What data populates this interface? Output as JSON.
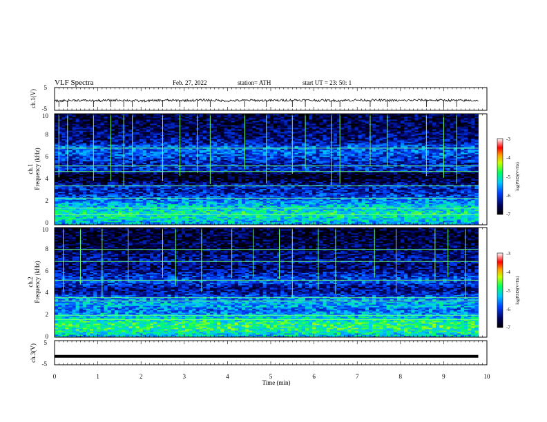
{
  "header": {
    "title": "VLF Spectra",
    "date": "Feb. 27, 2022",
    "station": "station= ATH",
    "start": "start UT =  23: 50: 1"
  },
  "colors": {
    "background": "#ffffff",
    "axis": "#000000",
    "spectrogram_low": "#00005a",
    "spectrogram_high": "#ff0000",
    "trace": "#000000"
  },
  "chart_data": [
    {
      "type": "line",
      "name": "ch1-waveform",
      "ylabel": "ch.1(V)",
      "ylim": [
        -5,
        5
      ],
      "yticks": [
        "5",
        "-5"
      ],
      "xlim": [
        0,
        10
      ],
      "x": [
        0,
        0.5,
        1,
        1.5,
        2,
        2.5,
        3,
        3.5,
        4,
        4.5,
        5,
        5.5,
        6,
        6.5,
        7,
        7.5,
        8,
        8.5,
        9,
        9.5,
        9.8
      ],
      "y": [
        -0.9,
        -0.6,
        -0.8,
        -0.5,
        -0.9,
        -0.6,
        -0.7,
        -0.5,
        -0.8,
        -0.6,
        -0.7,
        -0.5,
        -0.6,
        -0.7,
        -0.5,
        -0.6,
        -0.7,
        -0.5,
        -0.6,
        -0.7,
        -0.6
      ]
    },
    {
      "type": "heatmap",
      "name": "ch1-spectrogram",
      "ylabel": "ch.1\nFrequency (kHz)",
      "ylim": [
        0,
        10
      ],
      "yticks": [
        "0",
        "2",
        "4",
        "6",
        "8",
        "10"
      ],
      "xlim": [
        0,
        10
      ],
      "data_end_min": 9.8,
      "colorbar": {
        "label": "log(PSD)(V²/Hz)",
        "range": [
          -7,
          -3
        ],
        "ticks": [
          "-3",
          "-4",
          "-5",
          "-6",
          "-7"
        ]
      },
      "profile_khz": [
        0,
        0.5,
        1.0,
        1.5,
        2.0,
        2.5,
        3.0,
        3.5,
        4.0,
        4.5,
        5.0,
        5.5,
        6.0,
        6.5,
        7.0,
        7.5,
        8.0,
        9.0,
        10.0
      ],
      "profile_logpsd": [
        -5.5,
        -5.2,
        -5.0,
        -5.2,
        -5.5,
        -5.9,
        -6.2,
        -6.1,
        -6.7,
        -6.9,
        -6.0,
        -6.2,
        -6.0,
        -5.8,
        -5.8,
        -6.3,
        -6.4,
        -6.6,
        -6.6
      ],
      "lines_khz": [
        0.9,
        1.5,
        2.4,
        3.5,
        4.8,
        5.3,
        6.9
      ],
      "transients_min": [
        0.1,
        0.3,
        0.9,
        1.3,
        1.6,
        1.8,
        2.5,
        2.9,
        3.3,
        3.6,
        4.4,
        4.9,
        5.5,
        5.8,
        6.4,
        6.6,
        7.3,
        7.7,
        8.6,
        9.0,
        9.3
      ]
    },
    {
      "type": "heatmap",
      "name": "ch2-spectrogram",
      "ylabel": "ch.2\nFrequency (kHz)",
      "ylim": [
        0,
        10
      ],
      "yticks": [
        "0",
        "2",
        "4",
        "6",
        "8",
        "10"
      ],
      "xlim": [
        0,
        10
      ],
      "data_end_min": 9.8,
      "colorbar": {
        "label": "log(PSD)(V²/Hz)",
        "range": [
          -7,
          -3
        ],
        "ticks": [
          "-3",
          "-4",
          "-5",
          "-6",
          "-7"
        ]
      },
      "profile_khz": [
        0,
        0.5,
        1.0,
        1.5,
        2.0,
        2.5,
        3.0,
        3.5,
        4.0,
        4.5,
        5.0,
        5.5,
        6.0,
        6.5,
        7.0,
        7.5,
        8.0,
        9.0,
        10.0
      ],
      "profile_logpsd": [
        -5.4,
        -5.0,
        -4.8,
        -5.0,
        -5.4,
        -5.7,
        -5.4,
        -5.6,
        -6.2,
        -6.4,
        -5.9,
        -6.0,
        -6.3,
        -6.5,
        -6.3,
        -6.4,
        -6.6,
        -6.7,
        -6.7
      ],
      "lines_khz": [
        1.6,
        2.0,
        3.3,
        3.6,
        5.2,
        6.9,
        8.0
      ],
      "transients_min": [
        0.2,
        0.6,
        1.1,
        1.7,
        2.5,
        2.8,
        3.4,
        4.1,
        4.6,
        5.2,
        5.5,
        6.1,
        6.5,
        7.4,
        7.9,
        8.8,
        9.1,
        9.5
      ]
    },
    {
      "type": "line",
      "name": "ch3-waveform",
      "ylabel": "ch.3(V)",
      "ylim": [
        -5,
        5
      ],
      "yticks": [
        "5",
        "-5"
      ],
      "xlim": [
        0,
        10
      ],
      "x": [
        0,
        9.8
      ],
      "y": [
        -1.5,
        -1.5
      ]
    }
  ],
  "xaxis": {
    "label": "Time (min)",
    "ticks": [
      "0",
      "1",
      "2",
      "3",
      "4",
      "5",
      "6",
      "7",
      "8",
      "9",
      "10"
    ]
  }
}
